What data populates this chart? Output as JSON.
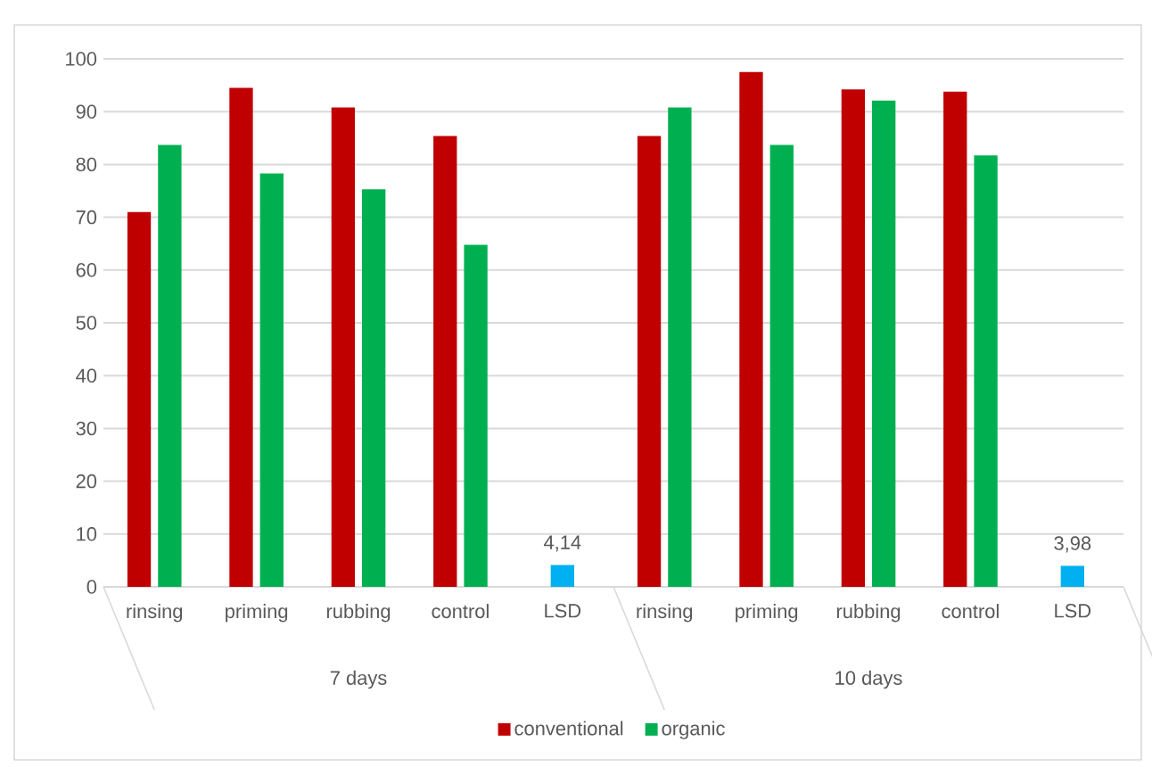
{
  "chart_data": {
    "type": "bar",
    "categories": [
      "rinsing",
      "priming",
      "rubbing",
      "control",
      "LSD",
      "rinsing",
      "priming",
      "rubbing",
      "control",
      "LSD"
    ],
    "series": [
      {
        "name": "conventional",
        "color": "#c00000",
        "values": [
          71,
          94.5,
          90.8,
          85.4,
          null,
          85.4,
          97.5,
          94.2,
          93.8,
          null
        ]
      },
      {
        "name": "organic",
        "color": "#00b050",
        "values": [
          83.7,
          78.3,
          75.3,
          64.8,
          null,
          90.8,
          83.7,
          92.1,
          81.7,
          null
        ]
      },
      {
        "color": "#00b0f0",
        "values": [
          null,
          null,
          null,
          null,
          4.14,
          null,
          null,
          null,
          null,
          3.98
        ],
        "value_labels": [
          null,
          null,
          null,
          null,
          "4,14",
          null,
          null,
          null,
          null,
          "3,98"
        ]
      }
    ],
    "annotations": [
      "7 days",
      "10 days"
    ],
    "ylim": [
      0,
      100
    ],
    "yticks": [
      0,
      10,
      20,
      30,
      40,
      50,
      60,
      70,
      80,
      90,
      100
    ],
    "grid": "y",
    "legend": "bottom"
  }
}
